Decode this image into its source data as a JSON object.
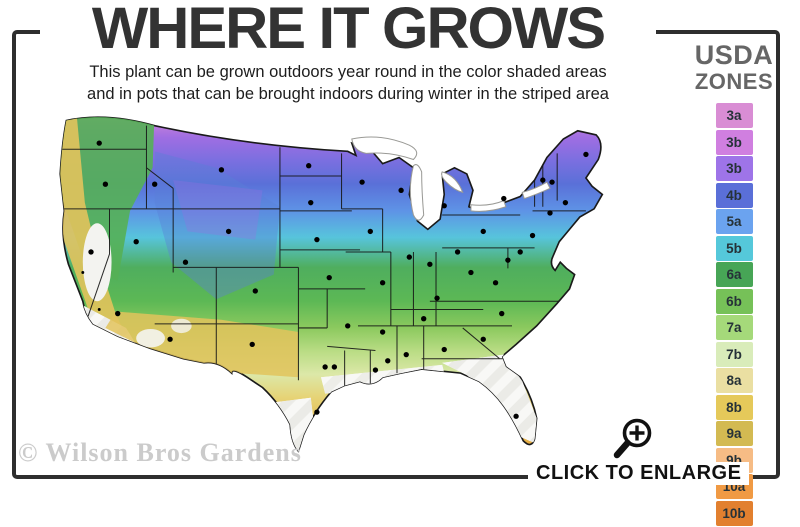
{
  "header": {
    "title": "WHERE IT GROWS",
    "subtitle_line1": "This plant can be grown outdoors year round in the color shaded areas",
    "subtitle_line2": "and in pots that can be brought indoors during winter in the striped area"
  },
  "legend": {
    "title_line1": "USDA",
    "title_line2": "ZONES",
    "zones": [
      {
        "label": "3a",
        "color": "#d98dd4"
      },
      {
        "label": "3b",
        "color": "#d07fe0"
      },
      {
        "label": "3b",
        "color": "#9e74e8"
      },
      {
        "label": "4b",
        "color": "#5a6fd8"
      },
      {
        "label": "5a",
        "color": "#6ba3ef"
      },
      {
        "label": "5b",
        "color": "#55c8da"
      },
      {
        "label": "6a",
        "color": "#47a556"
      },
      {
        "label": "6b",
        "color": "#76c158"
      },
      {
        "label": "7a",
        "color": "#a5d97a"
      },
      {
        "label": "7b",
        "color": "#d9ecba"
      },
      {
        "label": "8a",
        "color": "#eadfa2"
      },
      {
        "label": "8b",
        "color": "#e5c95a"
      },
      {
        "label": "9a",
        "color": "#d3ba52"
      },
      {
        "label": "9b",
        "color": "#f6bc85"
      },
      {
        "label": "10a",
        "color": "#f09a44"
      },
      {
        "label": "10b",
        "color": "#e2802f"
      }
    ]
  },
  "map": {
    "region": "Continental United States hardiness zones",
    "dot_color": "#000000",
    "state_border_color": "#161616",
    "frame_color": "#2e2e2e"
  },
  "footer": {
    "watermark": "© Wilson Bros Gardens",
    "enlarge_label": "CLICK TO ENLARGE"
  }
}
